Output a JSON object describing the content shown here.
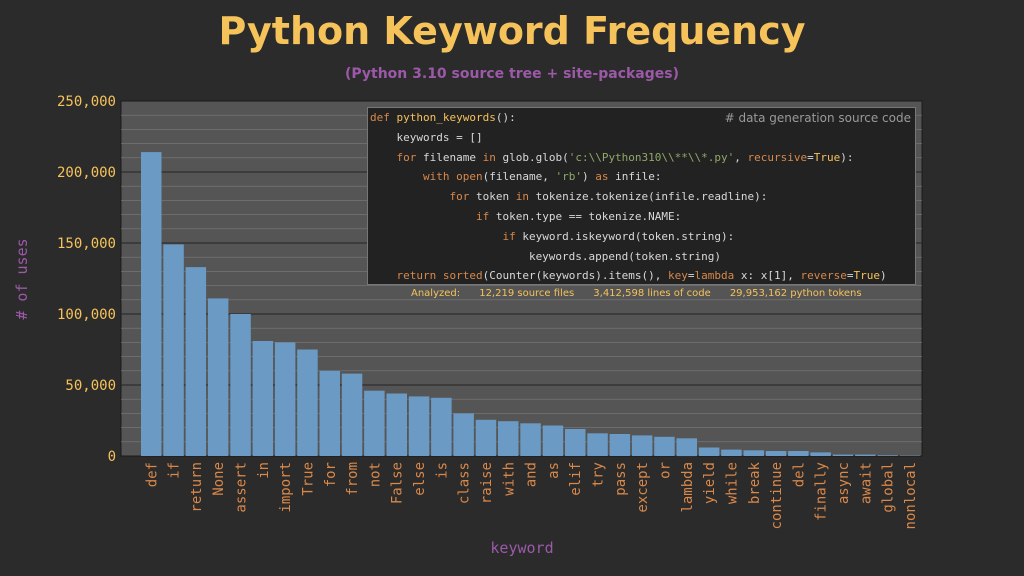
{
  "chart_data": {
    "type": "bar",
    "title": "Python Keyword Frequency",
    "subtitle": "(Python 3.10 source tree + site-packages)",
    "xlabel": "keyword",
    "ylabel": "# of uses",
    "ylim": [
      0,
      250000
    ],
    "yticks": [
      0,
      50000,
      100000,
      150000,
      200000,
      250000
    ],
    "ytick_labels": [
      "0",
      "50,000",
      "100,000",
      "150,000",
      "200,000",
      "250,000"
    ],
    "categories": [
      "def",
      "if",
      "return",
      "None",
      "assert",
      "in",
      "import",
      "True",
      "for",
      "from",
      "not",
      "False",
      "else",
      "is",
      "class",
      "raise",
      "with",
      "and",
      "as",
      "elif",
      "try",
      "pass",
      "except",
      "or",
      "lambda",
      "yield",
      "while",
      "break",
      "continue",
      "del",
      "finally",
      "async",
      "await",
      "global",
      "nonlocal"
    ],
    "values": [
      214000,
      149000,
      133000,
      111000,
      100000,
      81000,
      80000,
      75000,
      60000,
      58000,
      46000,
      44000,
      42000,
      41000,
      30000,
      25500,
      24500,
      23000,
      21500,
      19000,
      16000,
      15500,
      14500,
      13500,
      12500,
      6000,
      4500,
      4000,
      3500,
      3500,
      2500,
      1000,
      1000,
      500,
      300
    ],
    "bar_color": "#6b9ac4",
    "grid": true
  },
  "code_panel": {
    "comment": "# data generation source code",
    "lines": [
      [
        [
          "kw",
          "def "
        ],
        [
          "fn",
          "python_keywords"
        ],
        [
          "nm",
          "():"
        ]
      ],
      [
        [
          "nm",
          "    keywords = []"
        ]
      ],
      [
        [
          "kw",
          "    for "
        ],
        [
          "nm",
          "filename "
        ],
        [
          "kw",
          "in "
        ],
        [
          "nm",
          "glob.glob("
        ],
        [
          "st",
          "'c:\\\\Python310\\\\**\\\\*.py'"
        ],
        [
          "nm",
          ", "
        ],
        [
          "kw",
          "recursive"
        ],
        [
          "nm",
          "="
        ],
        [
          "fn",
          "True"
        ],
        [
          "nm",
          "):"
        ]
      ],
      [
        [
          "kw",
          "        with "
        ],
        [
          "kw",
          "open"
        ],
        [
          "nm",
          "(filename, "
        ],
        [
          "st",
          "'rb'"
        ],
        [
          "nm",
          ") "
        ],
        [
          "kw",
          "as "
        ],
        [
          "nm",
          "infile:"
        ]
      ],
      [
        [
          "kw",
          "            for "
        ],
        [
          "nm",
          "token "
        ],
        [
          "kw",
          "in "
        ],
        [
          "nm",
          "tokenize.tokenize(infile.readline):"
        ]
      ],
      [
        [
          "kw",
          "                if "
        ],
        [
          "nm",
          "token.type == tokenize.NAME:"
        ]
      ],
      [
        [
          "kw",
          "                    if "
        ],
        [
          "nm",
          "keyword.iskeyword(token.string):"
        ]
      ],
      [
        [
          "nm",
          "                        keywords.append(token.string)"
        ]
      ],
      [
        [
          "kw",
          "    return "
        ],
        [
          "kw",
          "sorted"
        ],
        [
          "nm",
          "(Counter(keywords).items(), "
        ],
        [
          "kw",
          "key"
        ],
        [
          "nm",
          "="
        ],
        [
          "kw",
          "lambda "
        ],
        [
          "nm",
          "x: x[1], "
        ],
        [
          "kw",
          "reverse"
        ],
        [
          "nm",
          "="
        ],
        [
          "fn",
          "True"
        ],
        [
          "nm",
          ")"
        ]
      ]
    ]
  },
  "stats": {
    "label": "Analyzed:",
    "files": "12,219 source files",
    "lines": "3,412,598 lines of code",
    "tokens": "29,953,162 python tokens"
  },
  "colors": {
    "background": "#2b2b2b",
    "plot_bg": "#555555",
    "grid": "#7a7a7a",
    "title": "#f6c25a",
    "accent_purple": "#9b59a8",
    "tick_orange": "#d9884a"
  }
}
